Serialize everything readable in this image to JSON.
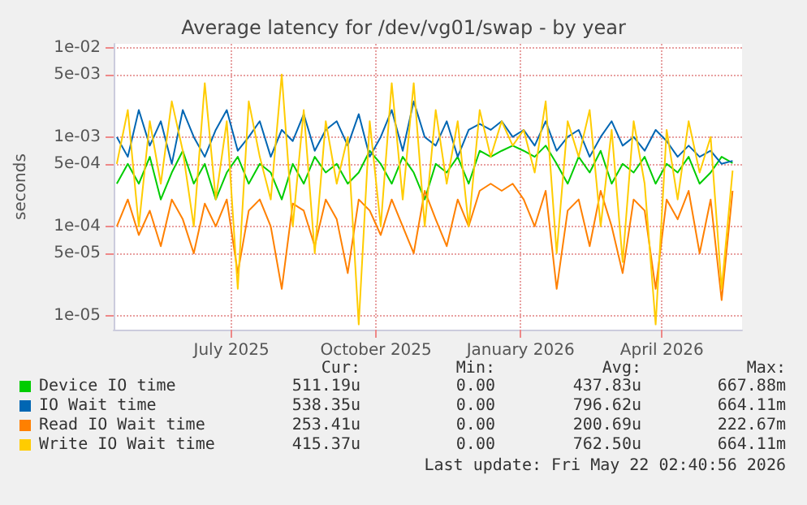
{
  "chart_data": {
    "type": "line",
    "title": "Average latency for /dev/vg01/swap - by year",
    "ylabel": "seconds",
    "log": "y",
    "grid": true,
    "legend": "bottom left",
    "marker": "none",
    "line_style": "solid",
    "xlim": [
      "2025-04-17",
      "2026-05-22"
    ],
    "xticks": [
      {
        "value": "2025-07-01",
        "label": "July 2025"
      },
      {
        "value": "2025-10-01",
        "label": "October 2025"
      },
      {
        "value": "2026-01-01",
        "label": "January 2026"
      },
      {
        "value": "2026-04-01",
        "label": "April 2026"
      }
    ],
    "ylim": [
      7e-06,
      0.011
    ],
    "yticks": [
      {
        "value": 1e-05,
        "label": "1e-05"
      },
      {
        "value": 5e-05,
        "label": "5e-05"
      },
      {
        "value": 0.0001,
        "label": "1e-04"
      },
      {
        "value": 0.0005,
        "label": "5e-04"
      },
      {
        "value": 0.001,
        "label": "1e-03"
      },
      {
        "value": 0.005,
        "label": "5e-03"
      },
      {
        "value": 0.01,
        "label": "1e-02"
      }
    ],
    "x": [
      "2025-04-19",
      "2025-04-26",
      "2025-05-03",
      "2025-05-10",
      "2025-05-17",
      "2025-05-24",
      "2025-05-31",
      "2025-06-07",
      "2025-06-14",
      "2025-06-21",
      "2025-06-28",
      "2025-07-05",
      "2025-07-12",
      "2025-07-19",
      "2025-07-26",
      "2025-08-02",
      "2025-08-09",
      "2025-08-16",
      "2025-08-23",
      "2025-08-30",
      "2025-09-06",
      "2025-09-13",
      "2025-09-20",
      "2025-09-27",
      "2025-10-04",
      "2025-10-11",
      "2025-10-18",
      "2025-10-25",
      "2025-11-01",
      "2025-11-08",
      "2025-11-15",
      "2025-11-22",
      "2025-11-29",
      "2025-12-06",
      "2025-12-13",
      "2025-12-20",
      "2025-12-27",
      "2026-01-03",
      "2026-01-10",
      "2026-01-17",
      "2026-01-24",
      "2026-01-31",
      "2026-02-07",
      "2026-02-14",
      "2026-02-21",
      "2026-02-28",
      "2026-03-07",
      "2026-03-14",
      "2026-03-21",
      "2026-03-28",
      "2026-04-04",
      "2026-04-11",
      "2026-04-18",
      "2026-04-25",
      "2026-05-02",
      "2026-05-09",
      "2026-05-16"
    ],
    "series": [
      {
        "name": "Device IO time",
        "color": "#00cc00",
        "values": [
          0.0003,
          0.0005,
          0.0003,
          0.0006,
          0.0002,
          0.0004,
          0.0007,
          0.0003,
          0.0005,
          0.0002,
          0.0004,
          0.0006,
          0.0003,
          0.0005,
          0.0004,
          0.0002,
          0.0005,
          0.0003,
          0.0006,
          0.0004,
          0.0005,
          0.0003,
          0.0004,
          0.0007,
          0.0005,
          0.0003,
          0.0006,
          0.0004,
          0.0002,
          0.0005,
          0.0004,
          0.0006,
          0.0003,
          0.0007,
          0.0006,
          0.0007,
          0.0008,
          0.0007,
          0.0006,
          0.0008,
          0.0005,
          0.0003,
          0.0006,
          0.0004,
          0.0007,
          0.0003,
          0.0005,
          0.0004,
          0.0006,
          0.0003,
          0.0005,
          0.0004,
          0.0006,
          0.0003,
          0.0004,
          0.0006,
          0.00051
        ]
      },
      {
        "name": "IO Wait time",
        "color": "#0066b3",
        "values": [
          0.001,
          0.0006,
          0.002,
          0.0008,
          0.0015,
          0.0005,
          0.002,
          0.001,
          0.0006,
          0.0012,
          0.002,
          0.0007,
          0.001,
          0.0015,
          0.0006,
          0.0012,
          0.0009,
          0.0018,
          0.0007,
          0.0012,
          0.0015,
          0.0008,
          0.0018,
          0.0006,
          0.001,
          0.002,
          0.0007,
          0.0025,
          0.001,
          0.0008,
          0.0015,
          0.0006,
          0.0012,
          0.0014,
          0.0012,
          0.0015,
          0.001,
          0.0012,
          0.0008,
          0.0015,
          0.0007,
          0.001,
          0.0012,
          0.0006,
          0.001,
          0.0015,
          0.0008,
          0.001,
          0.0007,
          0.0012,
          0.0009,
          0.0006,
          0.0008,
          0.0006,
          0.0007,
          0.0005,
          0.00054
        ]
      },
      {
        "name": "Read IO Wait time",
        "color": "#ff8000",
        "values": [
          0.0001,
          0.0002,
          8e-05,
          0.00015,
          6e-05,
          0.0002,
          0.00012,
          5e-05,
          0.00018,
          0.0001,
          0.0002,
          3e-05,
          0.00015,
          0.0002,
          0.0001,
          2e-05,
          0.00018,
          0.00015,
          6e-05,
          0.0002,
          0.00012,
          3e-05,
          0.0002,
          0.00015,
          8e-05,
          0.0002,
          0.0001,
          5e-05,
          0.00025,
          0.00012,
          6e-05,
          0.0002,
          0.0001,
          0.00025,
          0.0003,
          0.00025,
          0.0003,
          0.0002,
          0.0001,
          0.00025,
          2e-05,
          0.00015,
          0.0002,
          6e-05,
          0.00025,
          0.0001,
          3e-05,
          0.0002,
          0.00015,
          2e-05,
          0.0002,
          0.00012,
          0.00025,
          5e-05,
          0.0002,
          1.5e-05,
          0.00025
        ]
      },
      {
        "name": "Write IO Wait time",
        "color": "#ffcc00",
        "values": [
          0.0005,
          0.002,
          0.0001,
          0.0015,
          0.0003,
          0.0025,
          0.0007,
          0.0001,
          0.004,
          0.0002,
          0.0015,
          2e-05,
          0.0025,
          0.0006,
          0.0002,
          0.005,
          0.0001,
          0.002,
          5e-05,
          0.0015,
          0.0003,
          0.001,
          8e-06,
          0.0015,
          0.0001,
          0.004,
          0.0002,
          0.004,
          0.0001,
          0.002,
          0.0003,
          0.0015,
          0.0001,
          0.002,
          0.0006,
          0.0015,
          0.0008,
          0.0012,
          0.0004,
          0.0025,
          5e-05,
          0.0015,
          0.0006,
          0.002,
          0.0001,
          0.0012,
          4e-05,
          0.0015,
          0.0003,
          8e-06,
          0.0012,
          0.0002,
          0.0015,
          0.0004,
          0.001,
          2e-05,
          0.00042
        ]
      }
    ],
    "annotations": [
      "Cur:",
      "Min:",
      "Avg:",
      "Max:",
      "511.19u",
      "0.00",
      "437.83u",
      "667.88m",
      "538.35u",
      "0.00",
      "796.62u",
      "664.11m",
      "253.41u",
      "0.00",
      "200.69u",
      "222.67m",
      "415.37u",
      "0.00",
      "762.50u",
      "664.11m",
      "Last update: Fri May 22 02:40:56 2026"
    ]
  }
}
